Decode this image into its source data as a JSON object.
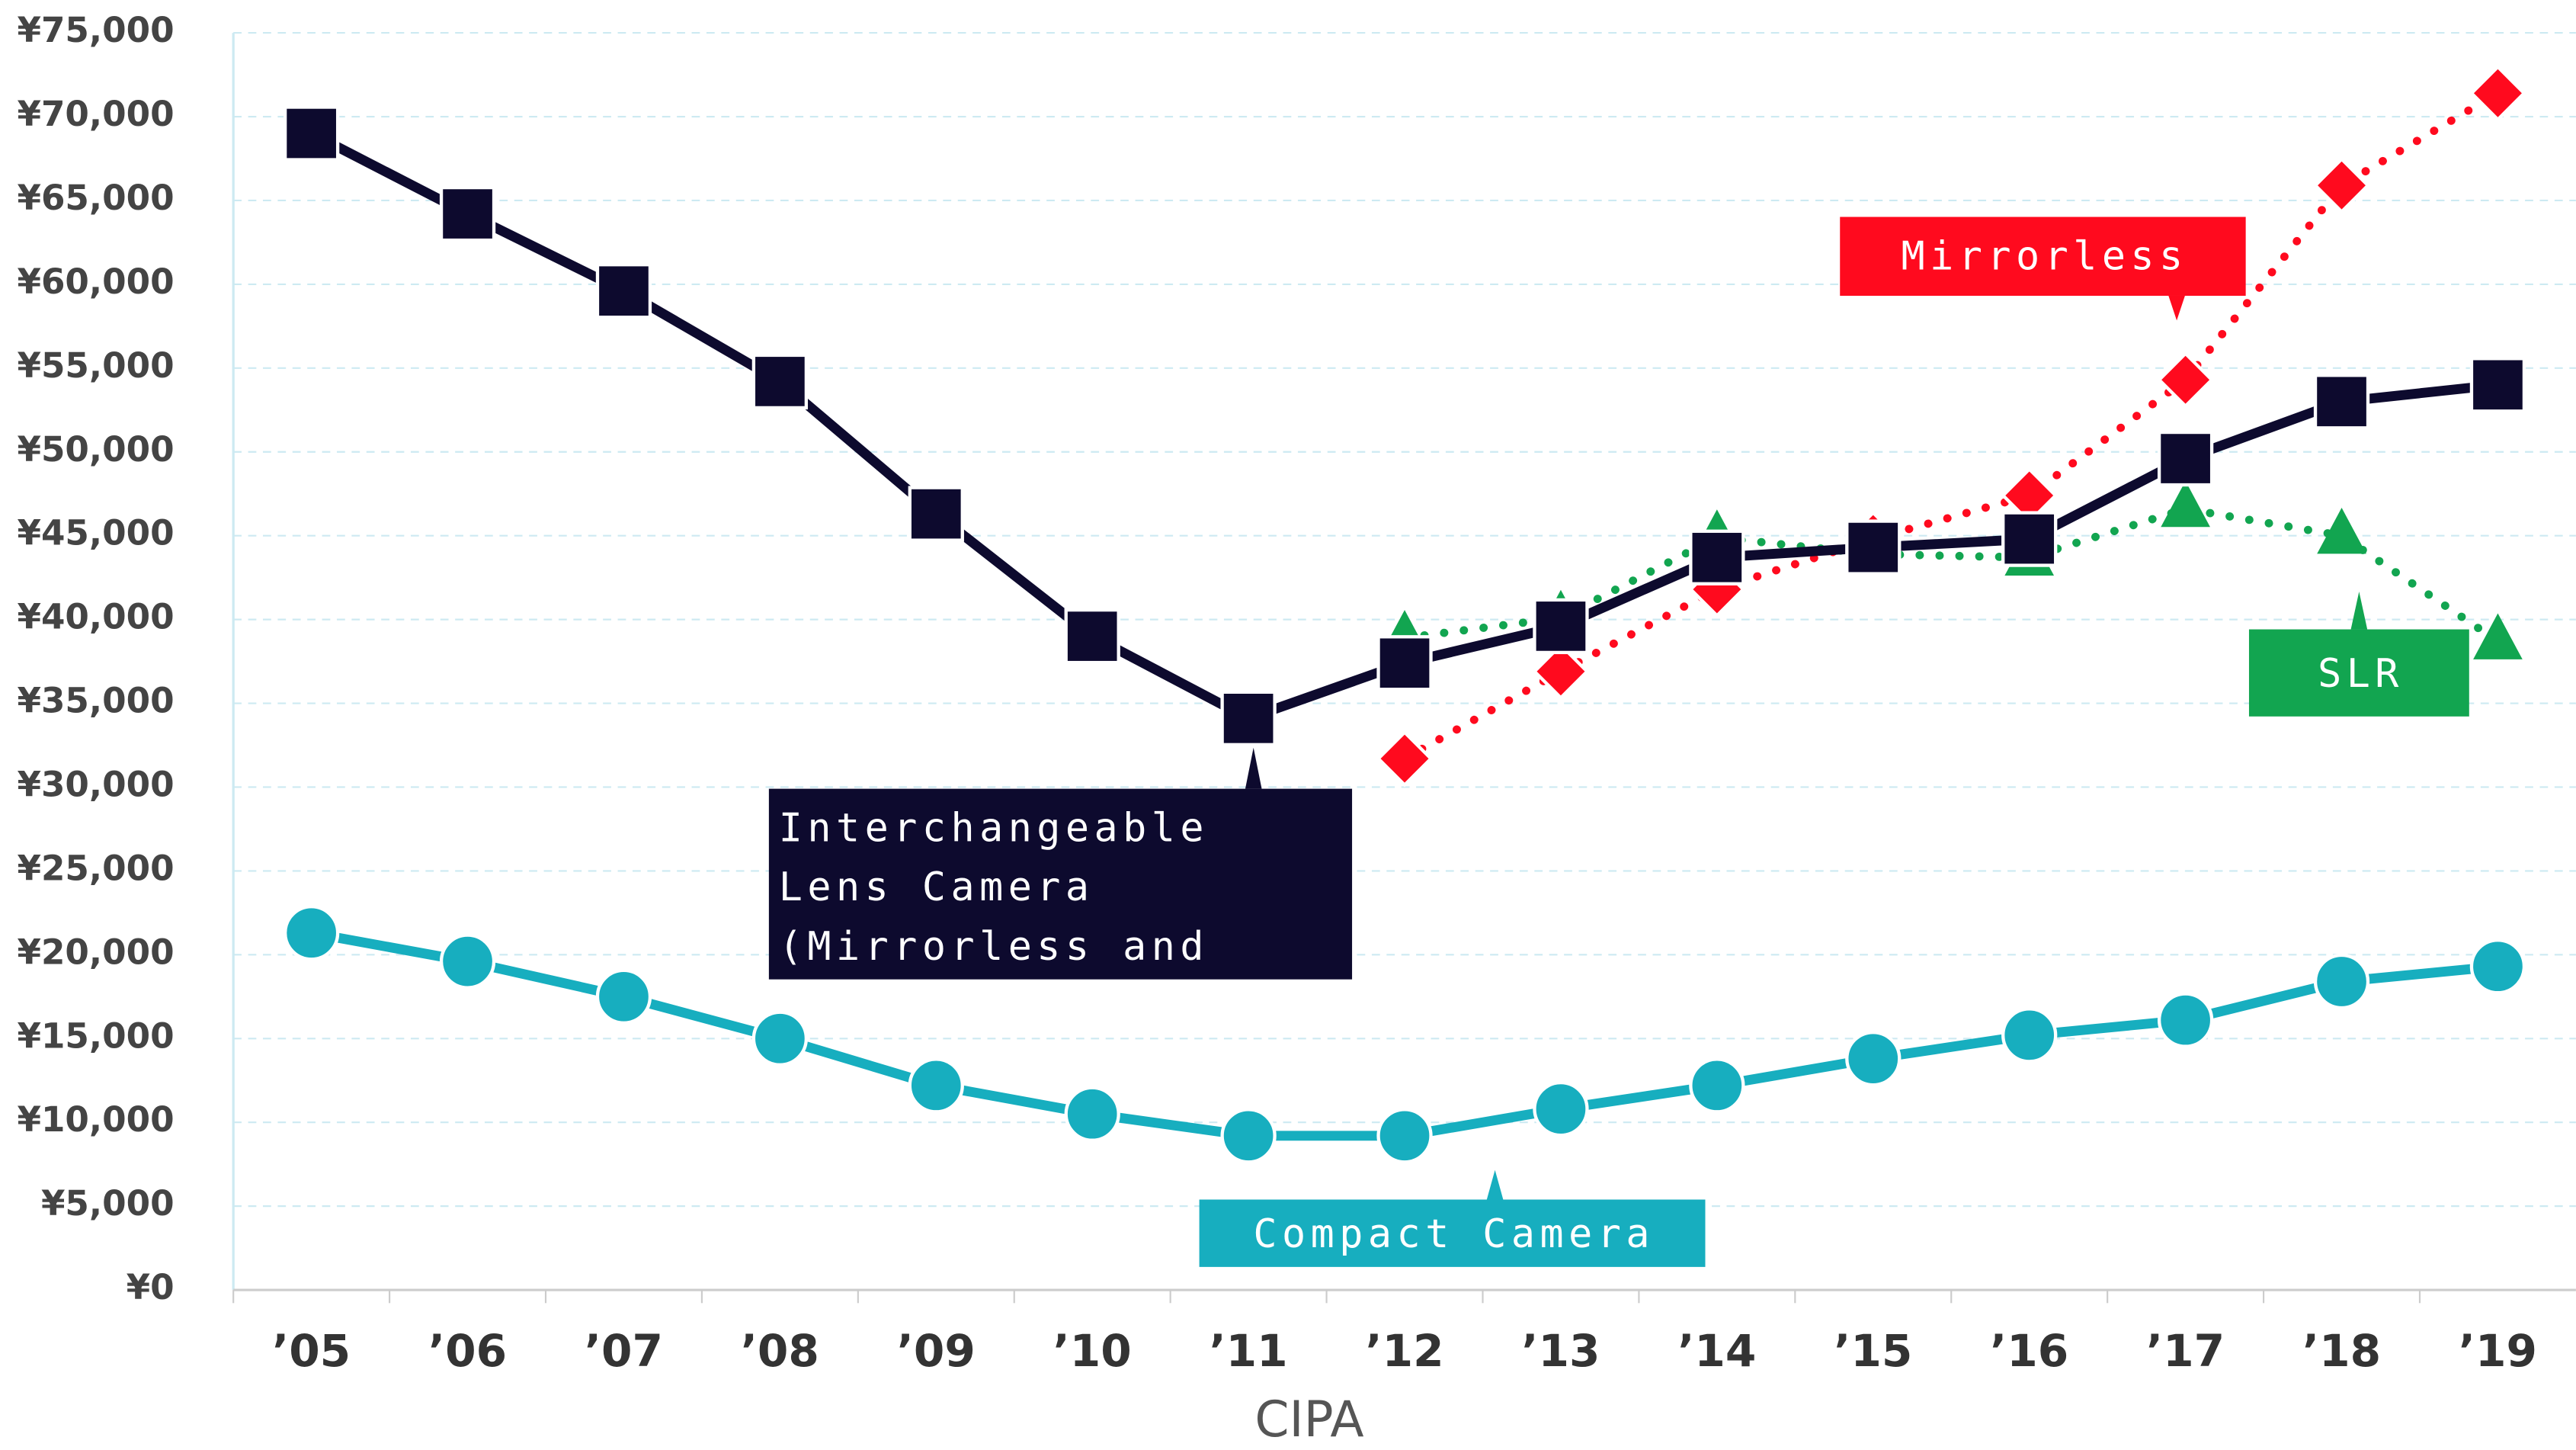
{
  "chart_data": {
    "type": "line",
    "categories": [
      "’05",
      "’06",
      "’07",
      "’08",
      "’09",
      "’10",
      "’11",
      "’12",
      "’13",
      "’14",
      "’15",
      "’16",
      "’17",
      "’18",
      "’19"
    ],
    "series": [
      {
        "name": "Interchangeable Lens Camera (Mirrorless and SLR)",
        "color": "#0d0a2e",
        "marker": "square",
        "dash": "solid",
        "values": [
          69000,
          64200,
          59600,
          54200,
          46300,
          39000,
          34100,
          37400,
          39600,
          43700,
          44300,
          44800,
          49600,
          53000,
          54000
        ]
      },
      {
        "name": "Compact Camera",
        "color": "#17aebf",
        "marker": "circle",
        "dash": "solid",
        "values": [
          21300,
          19600,
          17500,
          15000,
          12200,
          10500,
          9200,
          9200,
          10800,
          12200,
          13800,
          15200,
          16100,
          18400,
          19300
        ]
      },
      {
        "name": "Mirrorless",
        "color": "#ff0a1e",
        "marker": "diamond",
        "dash": "dotted",
        "values": [
          null,
          null,
          null,
          null,
          null,
          null,
          null,
          31700,
          36900,
          41800,
          44800,
          47400,
          54300,
          65900,
          71400
        ]
      },
      {
        "name": "SLR",
        "color": "#12a550",
        "marker": "triangle",
        "dash": "dotted",
        "values": [
          null,
          null,
          null,
          null,
          null,
          null,
          null,
          38900,
          40100,
          44900,
          43900,
          43700,
          46600,
          45000,
          38700
        ]
      }
    ],
    "ylim": [
      0,
      75000
    ],
    "yticks": [
      {
        "value": 0,
        "label": "¥0"
      },
      {
        "value": 5000,
        "label": "¥5,000"
      },
      {
        "value": 10000,
        "label": "¥10,000"
      },
      {
        "value": 15000,
        "label": "¥15,000"
      },
      {
        "value": 20000,
        "label": "¥20,000"
      },
      {
        "value": 25000,
        "label": "¥25,000"
      },
      {
        "value": 30000,
        "label": "¥30,000"
      },
      {
        "value": 35000,
        "label": "¥35,000"
      },
      {
        "value": 40000,
        "label": "¥40,000"
      },
      {
        "value": 45000,
        "label": "¥45,000"
      },
      {
        "value": 50000,
        "label": "¥50,000"
      },
      {
        "value": 55000,
        "label": "¥55,000"
      },
      {
        "value": 60000,
        "label": "¥60,000"
      },
      {
        "value": 65000,
        "label": "¥65,000"
      },
      {
        "value": 70000,
        "label": "¥70,000"
      },
      {
        "value": 75000,
        "label": "¥75,000"
      }
    ],
    "grid": true,
    "source": "CIPA"
  }
}
